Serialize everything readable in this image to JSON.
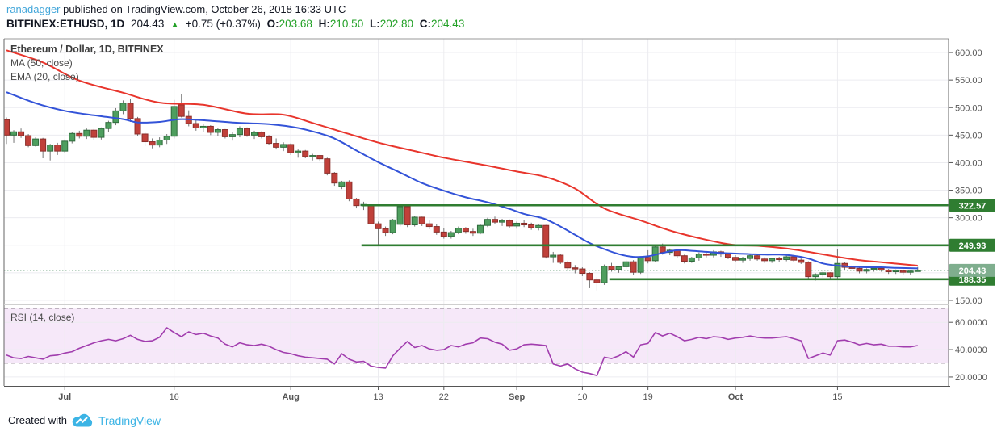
{
  "header": {
    "username": "ranadagger",
    "published": " published on TradingView.com, October 26, 2018 16:33 UTC",
    "symbol": "BITFINEX:ETHUSD, 1D",
    "last_price": "204.43",
    "direction_arrow": "▲",
    "change": "+0.75 (+0.37%)",
    "ohlc": [
      {
        "label": "O:",
        "value": "203.68"
      },
      {
        "label": "H:",
        "value": "210.50"
      },
      {
        "label": "L:",
        "value": "202.80"
      },
      {
        "label": "C:",
        "value": "204.43"
      }
    ]
  },
  "legend": {
    "title": "Ethereum / Dollar, 1D, BITFINEX",
    "ma": "MA (50, close)",
    "ema": "EMA (20, close)"
  },
  "rsi_label": "RSI (14, close)",
  "footer": {
    "created_with": "Created with",
    "brand": "TradingView"
  },
  "colors": {
    "up_fill": "#4e9e5e",
    "up_border": "#2f6b3c",
    "down_fill": "#c0403a",
    "down_border": "#8a2e2a",
    "wick": "#757575",
    "ma50": "#e8352c",
    "ema20": "#3353d8",
    "level_green": "#2f7d31",
    "last_badge": "#7fae8e",
    "dotted_line": "#4e8d63",
    "rsi_line": "#a13dae",
    "rsi_fill": "#f6e8f9",
    "rsi_dash": "#aca0ae",
    "grid": "#ececf0",
    "axis_text": "#555555",
    "border": "#999999",
    "axis_line": "#555555",
    "header_link": "#44a7da",
    "ohlc_green": "#22a026",
    "tv_blue": "#3cb4e5"
  },
  "chart_data": {
    "type": "candlestick",
    "title": "Ethereum / Dollar, 1D, BITFINEX",
    "symbol": "BITFINEX:ETHUSD",
    "interval": "1D",
    "price_axis": {
      "labels": [
        600,
        550,
        500,
        450,
        400,
        350,
        300,
        150
      ],
      "shown_range": [
        150,
        625
      ]
    },
    "time_ticks": [
      {
        "index": 8,
        "label": "Jul",
        "bold": true
      },
      {
        "index": 23,
        "label": "16",
        "bold": false
      },
      {
        "index": 39,
        "label": "Aug",
        "bold": true
      },
      {
        "index": 51,
        "label": "13",
        "bold": false
      },
      {
        "index": 60,
        "label": "22",
        "bold": false
      },
      {
        "index": 70,
        "label": "Sep",
        "bold": true
      },
      {
        "index": 79,
        "label": "10",
        "bold": false
      },
      {
        "index": 88,
        "label": "19",
        "bold": false
      },
      {
        "index": 100,
        "label": "Oct",
        "bold": true
      },
      {
        "index": 114,
        "label": "15",
        "bold": false
      }
    ],
    "candles": [
      [
        478,
        482,
        434,
        450
      ],
      [
        450,
        459,
        436,
        456
      ],
      [
        456,
        462,
        445,
        449
      ],
      [
        449,
        452,
        428,
        431
      ],
      [
        431,
        446,
        429,
        443
      ],
      [
        443,
        445,
        408,
        421
      ],
      [
        421,
        434,
        404,
        432
      ],
      [
        432,
        436,
        414,
        421
      ],
      [
        421,
        442,
        418,
        439
      ],
      [
        439,
        456,
        435,
        453
      ],
      [
        453,
        458,
        444,
        448
      ],
      [
        448,
        462,
        443,
        459
      ],
      [
        459,
        461,
        441,
        446
      ],
      [
        446,
        464,
        442,
        462
      ],
      [
        462,
        476,
        456,
        473
      ],
      [
        473,
        499,
        468,
        494
      ],
      [
        494,
        513,
        488,
        508
      ],
      [
        508,
        516,
        474,
        480
      ],
      [
        480,
        483,
        448,
        452
      ],
      [
        452,
        456,
        430,
        438
      ],
      [
        438,
        444,
        426,
        432
      ],
      [
        432,
        446,
        428,
        441
      ],
      [
        441,
        452,
        434,
        448
      ],
      [
        448,
        514,
        444,
        502
      ],
      [
        505,
        524,
        482,
        484
      ],
      [
        484,
        495,
        466,
        471
      ],
      [
        471,
        478,
        458,
        463
      ],
      [
        463,
        470,
        455,
        466
      ],
      [
        466,
        468,
        450,
        455
      ],
      [
        455,
        463,
        449,
        460
      ],
      [
        460,
        461,
        444,
        447
      ],
      [
        447,
        455,
        440,
        451
      ],
      [
        451,
        466,
        446,
        462
      ],
      [
        462,
        464,
        447,
        450
      ],
      [
        450,
        458,
        443,
        455
      ],
      [
        455,
        457,
        444,
        447
      ],
      [
        447,
        450,
        432,
        435
      ],
      [
        435,
        444,
        424,
        428
      ],
      [
        428,
        437,
        421,
        433
      ],
      [
        433,
        435,
        414,
        418
      ],
      [
        418,
        424,
        409,
        421
      ],
      [
        421,
        423,
        408,
        411
      ],
      [
        411,
        416,
        404,
        413
      ],
      [
        413,
        414,
        402,
        407
      ],
      [
        407,
        409,
        377,
        381
      ],
      [
        381,
        383,
        358,
        363
      ],
      [
        357,
        367,
        352,
        365
      ],
      [
        365,
        368,
        330,
        334
      ],
      [
        334,
        336,
        317,
        322
      ],
      [
        322,
        329,
        314,
        324
      ],
      [
        322,
        324,
        284,
        289
      ],
      [
        289,
        293,
        251,
        280
      ],
      [
        280,
        284,
        267,
        273
      ],
      [
        273,
        298,
        270,
        296
      ],
      [
        288,
        323,
        284,
        320
      ],
      [
        320,
        322,
        283,
        287
      ],
      [
        287,
        303,
        284,
        301
      ],
      [
        301,
        302,
        285,
        289
      ],
      [
        289,
        295,
        279,
        284
      ],
      [
        284,
        288,
        269,
        274
      ],
      [
        274,
        281,
        262,
        266
      ],
      [
        266,
        276,
        262,
        273
      ],
      [
        273,
        284,
        270,
        281
      ],
      [
        281,
        283,
        271,
        275
      ],
      [
        275,
        280,
        267,
        272
      ],
      [
        272,
        288,
        270,
        286
      ],
      [
        286,
        300,
        283,
        297
      ],
      [
        297,
        302,
        288,
        292
      ],
      [
        292,
        298,
        285,
        295
      ],
      [
        295,
        297,
        282,
        285
      ],
      [
        285,
        293,
        280,
        290
      ],
      [
        290,
        296,
        283,
        287
      ],
      [
        287,
        291,
        278,
        282
      ],
      [
        282,
        289,
        277,
        286
      ],
      [
        286,
        287,
        226,
        229
      ],
      [
        229,
        238,
        218,
        232
      ],
      [
        232,
        234,
        216,
        219
      ],
      [
        219,
        222,
        204,
        209
      ],
      [
        209,
        214,
        199,
        207
      ],
      [
        207,
        210,
        194,
        199
      ],
      [
        199,
        201,
        172,
        187
      ],
      [
        187,
        192,
        168,
        182
      ],
      [
        182,
        215,
        178,
        212
      ],
      [
        212,
        218,
        202,
        206
      ],
      [
        206,
        213,
        200,
        211
      ],
      [
        211,
        224,
        207,
        220
      ],
      [
        220,
        223,
        196,
        201
      ],
      [
        201,
        230,
        198,
        228
      ],
      [
        228,
        241,
        217,
        222
      ],
      [
        222,
        250,
        219,
        247
      ],
      [
        247,
        253,
        233,
        237
      ],
      [
        237,
        244,
        232,
        241
      ],
      [
        241,
        243,
        227,
        231
      ],
      [
        231,
        233,
        217,
        221
      ],
      [
        221,
        229,
        218,
        227
      ],
      [
        227,
        237,
        222,
        234
      ],
      [
        234,
        237,
        228,
        232
      ],
      [
        232,
        241,
        228,
        238
      ],
      [
        238,
        240,
        229,
        234
      ],
      [
        234,
        236,
        225,
        228
      ],
      [
        228,
        232,
        220,
        223
      ],
      [
        223,
        229,
        218,
        226
      ],
      [
        226,
        233,
        222,
        231
      ],
      [
        231,
        233,
        222,
        225
      ],
      [
        225,
        228,
        218,
        222
      ],
      [
        222,
        227,
        218,
        226
      ],
      [
        226,
        229,
        220,
        224
      ],
      [
        224,
        231,
        221,
        229
      ],
      [
        229,
        230,
        220,
        223
      ],
      [
        223,
        226,
        216,
        219
      ],
      [
        219,
        221,
        189,
        193
      ],
      [
        193,
        199,
        186,
        197
      ],
      [
        197,
        202,
        192,
        200
      ],
      [
        200,
        201,
        190,
        193
      ],
      [
        193,
        243,
        188,
        217
      ],
      [
        217,
        219,
        205,
        210
      ],
      [
        210,
        215,
        204,
        208
      ],
      [
        208,
        211,
        199,
        203
      ],
      [
        203,
        208,
        199,
        206
      ],
      [
        206,
        210,
        202,
        208
      ],
      [
        208,
        210,
        202,
        205
      ],
      [
        205,
        207,
        198,
        202
      ],
      [
        202,
        206,
        198,
        204
      ],
      [
        204,
        206,
        197,
        201
      ],
      [
        201,
        205,
        197,
        203
      ],
      [
        203.68,
        210.5,
        202.8,
        204.43
      ]
    ],
    "levels": [
      {
        "value": 322.57,
        "start_index": 48.7,
        "style": "solid",
        "badge": "green"
      },
      {
        "value": 249.93,
        "start_index": 48.7,
        "style": "solid",
        "badge": "green"
      },
      {
        "value": 188.35,
        "start_index": 82.7,
        "style": "solid",
        "badge": "green"
      },
      {
        "value": 204.43,
        "start_index": -0.4,
        "style": "dotted",
        "badge": "sage"
      }
    ],
    "ma50": {
      "period": 50,
      "anchors": [
        [
          0,
          604
        ],
        [
          5,
          582
        ],
        [
          10,
          549
        ],
        [
          16,
          527
        ],
        [
          21,
          509
        ],
        [
          27,
          505
        ],
        [
          33,
          489
        ],
        [
          38,
          487
        ],
        [
          42,
          472
        ],
        [
          46,
          456
        ],
        [
          49,
          444
        ],
        [
          52,
          433
        ],
        [
          56,
          421
        ],
        [
          60,
          409
        ],
        [
          65,
          397
        ],
        [
          70,
          384
        ],
        [
          74,
          374
        ],
        [
          78,
          353
        ],
        [
          82,
          317
        ],
        [
          87,
          295
        ],
        [
          92,
          273
        ],
        [
          99,
          252
        ],
        [
          103,
          249
        ],
        [
          107,
          244
        ],
        [
          110,
          238
        ],
        [
          114,
          229
        ],
        [
          117,
          223
        ],
        [
          121,
          218
        ],
        [
          125,
          213
        ]
      ]
    },
    "ema20": {
      "period": 20,
      "anchors": [
        [
          0,
          528
        ],
        [
          4,
          508
        ],
        [
          8,
          494
        ],
        [
          12,
          486
        ],
        [
          16,
          479
        ],
        [
          18,
          473
        ],
        [
          21,
          474
        ],
        [
          24,
          479
        ],
        [
          28,
          476
        ],
        [
          32,
          472
        ],
        [
          36,
          470
        ],
        [
          40,
          463
        ],
        [
          44,
          449
        ],
        [
          46,
          437
        ],
        [
          48,
          422
        ],
        [
          51,
          401
        ],
        [
          54,
          382
        ],
        [
          57,
          363
        ],
        [
          60,
          349
        ],
        [
          63,
          337
        ],
        [
          66,
          328
        ],
        [
          69,
          316
        ],
        [
          71,
          307
        ],
        [
          73,
          301
        ],
        [
          74,
          297
        ],
        [
          76,
          284
        ],
        [
          78,
          269
        ],
        [
          80,
          254
        ],
        [
          82,
          243
        ],
        [
          84,
          234
        ],
        [
          86,
          229
        ],
        [
          88,
          230
        ],
        [
          90,
          236
        ],
        [
          92,
          241
        ],
        [
          94,
          240
        ],
        [
          96,
          238
        ],
        [
          98,
          236
        ],
        [
          100,
          235
        ],
        [
          102,
          234
        ],
        [
          104,
          233
        ],
        [
          106,
          233
        ],
        [
          108,
          231
        ],
        [
          110,
          226
        ],
        [
          112,
          217
        ],
        [
          114,
          213
        ],
        [
          116,
          211
        ],
        [
          118,
          210
        ],
        [
          120,
          210
        ],
        [
          122,
          209
        ],
        [
          125,
          208
        ]
      ]
    },
    "rsi": {
      "period": 14,
      "band": [
        30,
        70
      ],
      "ticks": [
        60,
        40,
        20
      ],
      "values": [
        36,
        34,
        33.5,
        35,
        34,
        33,
        35.5,
        36,
        37.5,
        38.5,
        41,
        43,
        45,
        46.5,
        47.5,
        46.5,
        48,
        50.5,
        47.5,
        46,
        46.5,
        49,
        56,
        52.5,
        49.5,
        53,
        51,
        52,
        50,
        48.5,
        44,
        42,
        45,
        43.5,
        43,
        44,
        42.5,
        40,
        38,
        37,
        35.5,
        34.5,
        34,
        33.5,
        33,
        29.5,
        37,
        33,
        31,
        31.5,
        28,
        27,
        26.5,
        35.5,
        41,
        46,
        41.5,
        43,
        40.5,
        39.5,
        40,
        43,
        42,
        44,
        45,
        48.5,
        48,
        45.5,
        44,
        39.5,
        40.5,
        43.5,
        44,
        43.5,
        43,
        29.5,
        28,
        29.5,
        26,
        23.5,
        22.5,
        21,
        34.5,
        33.5,
        35.5,
        38.5,
        34.5,
        43.5,
        44.5,
        52.5,
        50,
        52,
        49.5,
        46.5,
        47.5,
        49,
        48,
        49.5,
        49,
        47.5,
        48.5,
        49,
        50,
        49,
        48.5,
        48.5,
        49,
        49.5,
        48,
        46.5,
        33.5,
        35.5,
        37.5,
        36,
        46.5,
        47,
        45.5,
        43.5,
        44.5,
        43.5,
        44,
        42.5,
        42.5,
        42,
        42,
        43
      ]
    }
  }
}
